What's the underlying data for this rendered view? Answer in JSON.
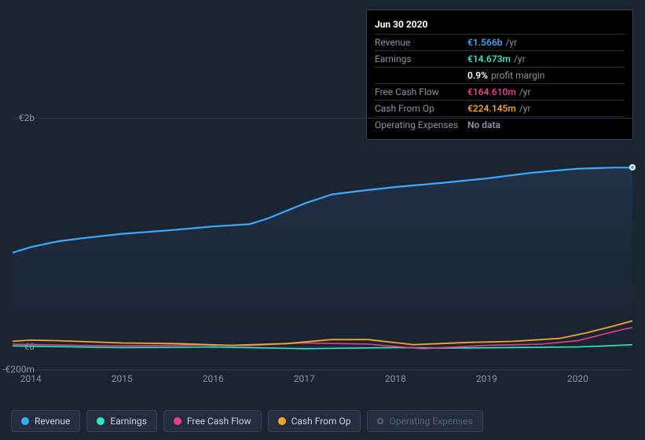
{
  "background_color": "#1b2431",
  "grid_color": "#2c3544",
  "text_color": "#8a94a6",
  "chart": {
    "type": "line",
    "x_domain": [
      2013.8,
      2020.6
    ],
    "y_domain": [
      -200,
      2000
    ],
    "y_ticks": [
      {
        "v": 2000,
        "label": "€2b"
      },
      {
        "v": 0,
        "label": "€0"
      },
      {
        "v": -200,
        "label": "-€200m"
      }
    ],
    "x_ticks": [
      {
        "v": 2014,
        "label": "2014"
      },
      {
        "v": 2015,
        "label": "2015"
      },
      {
        "v": 2016,
        "label": "2016"
      },
      {
        "v": 2017,
        "label": "2017"
      },
      {
        "v": 2018,
        "label": "2018"
      },
      {
        "v": 2019,
        "label": "2019"
      },
      {
        "v": 2020,
        "label": "2020"
      }
    ],
    "area_fill": "#1e3a5c",
    "area_fill_opacity": 0.55,
    "series": [
      {
        "id": "revenue",
        "label": "Revenue",
        "color": "#3da9fc",
        "width": 2.2,
        "xs": [
          2013.8,
          2014,
          2014.3,
          2014.6,
          2015,
          2015.5,
          2016,
          2016.4,
          2016.6,
          2017,
          2017.3,
          2017.6,
          2018,
          2018.5,
          2019,
          2019.5,
          2020,
          2020.4,
          2020.6
        ],
        "ys": [
          820,
          870,
          920,
          950,
          985,
          1015,
          1050,
          1070,
          1120,
          1250,
          1330,
          1360,
          1395,
          1430,
          1470,
          1520,
          1555,
          1565,
          1565
        ]
      },
      {
        "id": "earnings",
        "label": "Earnings",
        "color": "#2ee6c6",
        "width": 1.6,
        "xs": [
          2013.8,
          2014.5,
          2015,
          2015.5,
          2016,
          2016.5,
          2017,
          2017.5,
          2018,
          2018.5,
          2019,
          2019.5,
          2020,
          2020.45,
          2020.6
        ],
        "ys": [
          5,
          -5,
          -10,
          -8,
          -5,
          -12,
          -20,
          -15,
          -10,
          -15,
          -12,
          -8,
          -5,
          10,
          15
        ]
      },
      {
        "id": "fcf",
        "label": "Free Cash Flow",
        "color": "#e83e8c",
        "width": 1.6,
        "xs": [
          2013.8,
          2014.5,
          2015,
          2015.8,
          2016.4,
          2017,
          2017.7,
          2018.3,
          2019,
          2019.6,
          2020,
          2020.3,
          2020.5,
          2020.6
        ],
        "ys": [
          20,
          10,
          5,
          12,
          8,
          30,
          20,
          -20,
          10,
          20,
          50,
          110,
          150,
          165
        ]
      },
      {
        "id": "cfo",
        "label": "Cash From Op",
        "color": "#f0a52c",
        "width": 1.8,
        "xs": [
          2013.8,
          2014,
          2014.3,
          2015,
          2015.6,
          2016.2,
          2016.8,
          2017.3,
          2017.7,
          2018.2,
          2018.8,
          2019.3,
          2019.8,
          2020.1,
          2020.4,
          2020.6
        ],
        "ys": [
          45,
          55,
          50,
          30,
          25,
          10,
          25,
          60,
          60,
          15,
          35,
          45,
          70,
          120,
          180,
          224
        ]
      }
    ],
    "cursor_x": 2020.6,
    "cursor_series": "revenue"
  },
  "tooltip": {
    "title": "Jun 30 2020",
    "rows": [
      {
        "label": "Revenue",
        "value": "€1.566b",
        "unit": "/yr",
        "color": "#3da9fc"
      },
      {
        "label": "Earnings",
        "value": "€14.673m",
        "unit": "/yr",
        "color": "#2ee6c6"
      },
      {
        "label": "",
        "value": "0.9%",
        "unit": "profit margin",
        "color": "#ffffff"
      },
      {
        "label": "Free Cash Flow",
        "value": "€164.610m",
        "unit": "/yr",
        "color": "#e83e8c"
      },
      {
        "label": "Cash From Op",
        "value": "€224.145m",
        "unit": "/yr",
        "color": "#f0a52c"
      },
      {
        "label": "Operating Expenses",
        "value": "No data",
        "unit": "",
        "color": "#8a94a6"
      }
    ]
  },
  "legend": [
    {
      "id": "revenue",
      "label": "Revenue",
      "color": "#3da9fc",
      "dim": false,
      "hollow": false
    },
    {
      "id": "earnings",
      "label": "Earnings",
      "color": "#2ee6c6",
      "dim": false,
      "hollow": false
    },
    {
      "id": "fcf",
      "label": "Free Cash Flow",
      "color": "#e83e8c",
      "dim": false,
      "hollow": false
    },
    {
      "id": "cfo",
      "label": "Cash From Op",
      "color": "#f0a52c",
      "dim": false,
      "hollow": false
    },
    {
      "id": "opex",
      "label": "Operating Expenses",
      "color": "#5a6578",
      "dim": true,
      "hollow": true
    }
  ]
}
